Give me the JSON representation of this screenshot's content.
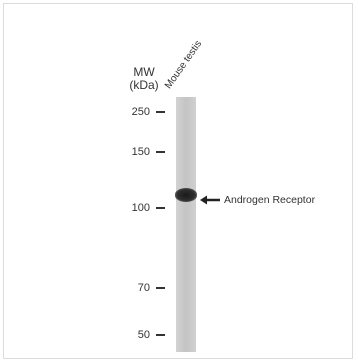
{
  "figure": {
    "mw_label_line1": "MW",
    "mw_label_line2": "(kDa)",
    "lane_label": "Mouse testis",
    "markers": [
      {
        "value": "250"
      },
      {
        "value": "150"
      },
      {
        "value": "100"
      },
      {
        "value": "70"
      },
      {
        "value": "50"
      }
    ],
    "band_label": "Androgen Receptor",
    "arrow_icon": "left-arrow-icon"
  }
}
